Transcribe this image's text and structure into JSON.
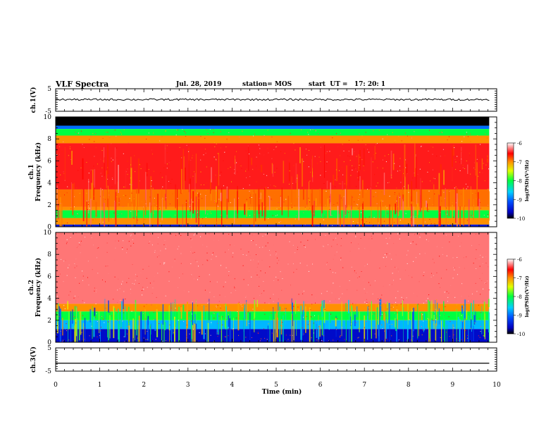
{
  "header": {
    "title": "VLF Spectra",
    "date": "Jul. 28, 2019",
    "station": "station= MOS",
    "start": "start  UT =   17: 20: 1"
  },
  "chart_data": [
    {
      "type": "line",
      "panel": "ch1-waveform",
      "ylabel": "ch.1(V)",
      "ylim": [
        -5,
        5
      ],
      "y_ticks": [
        "5",
        "-5"
      ],
      "xlim": [
        0,
        10
      ],
      "series": [
        {
          "note_value_V": 0.2,
          "values": [
            0.2
          ]
        }
      ]
    },
    {
      "type": "heatmap",
      "panel": "ch1-spectrogram",
      "ylabel_line1": "ch.1",
      "ylabel_line2": "Frequency (kHz)",
      "ylim": [
        0,
        10
      ],
      "y_ticks": [
        "0",
        "2",
        "4",
        "6",
        "8",
        "10"
      ],
      "xlim": [
        0,
        10
      ],
      "data_end_min": 9.83,
      "colorbar": {
        "label": "log(PSD)(V²/Hz)",
        "range": [
          -10,
          -6
        ],
        "ticks": [
          "-6",
          "-7",
          "-8",
          "-9",
          "-10"
        ]
      },
      "bands_kHz": [
        {
          "from": 9.2,
          "to": 10.0,
          "log_psd": -10.0
        },
        {
          "from": 8.9,
          "to": 9.2,
          "log_psd": -9.0
        },
        {
          "from": 8.3,
          "to": 8.9,
          "log_psd": -8.0
        },
        {
          "from": 7.6,
          "to": 8.3,
          "log_psd": -7.0
        },
        {
          "from": 3.4,
          "to": 7.6,
          "log_psd": -6.5
        },
        {
          "from": 1.8,
          "to": 3.4,
          "log_psd": -6.9
        },
        {
          "from": 1.5,
          "to": 1.8,
          "log_psd": -7.0
        },
        {
          "from": 0.8,
          "to": 1.5,
          "log_psd": -8.0
        },
        {
          "from": 0.2,
          "to": 0.8,
          "log_psd": -7.0
        },
        {
          "from": 0.0,
          "to": 0.2,
          "log_psd": -9.5
        }
      ]
    },
    {
      "type": "heatmap",
      "panel": "ch2-spectrogram",
      "ylabel_line1": "ch.2",
      "ylabel_line2": "Frequency (kHz)",
      "ylim": [
        0,
        10
      ],
      "y_ticks": [
        "0",
        "2",
        "4",
        "6",
        "8",
        "10"
      ],
      "xlim": [
        0,
        10
      ],
      "data_end_min": 9.83,
      "colorbar": {
        "label": "log(PSD)(V²/Hz)",
        "range": [
          -10,
          -6
        ],
        "ticks": [
          "-6",
          "-7",
          "-8",
          "-9",
          "-10"
        ]
      },
      "bands_kHz": [
        {
          "from": 3.5,
          "to": 10.0,
          "log_psd": -6.3
        },
        {
          "from": 2.8,
          "to": 3.5,
          "log_psd": -7.0
        },
        {
          "from": 2.0,
          "to": 2.8,
          "log_psd": -8.0
        },
        {
          "from": 1.2,
          "to": 2.0,
          "log_psd": -8.7
        },
        {
          "from": 0.0,
          "to": 1.2,
          "log_psd": -9.6
        }
      ]
    },
    {
      "type": "line",
      "panel": "ch3-waveform",
      "ylabel": "ch.3(V)",
      "ylim": [
        -5,
        5
      ],
      "y_ticks": [
        "5",
        "-5"
      ],
      "xlim": [
        0,
        10
      ],
      "series": [
        {
          "values": [
            -1.6
          ]
        }
      ]
    }
  ],
  "x_axis": {
    "label": "Time (min)",
    "ticks": [
      "0",
      "1",
      "2",
      "3",
      "4",
      "5",
      "6",
      "7",
      "8",
      "9",
      "10"
    ]
  }
}
